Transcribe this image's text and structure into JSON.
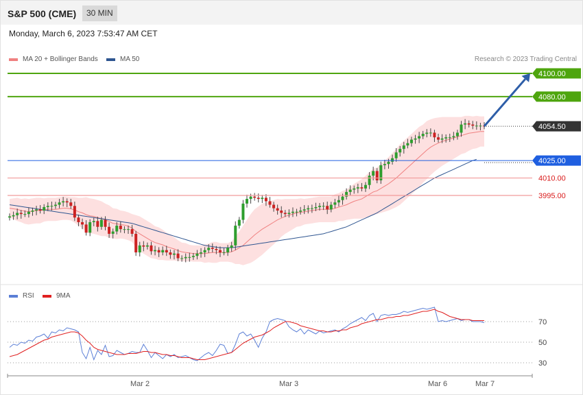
{
  "header": {
    "title": "S&P 500 (CME)",
    "timeframe": "30 MIN"
  },
  "datetime": "Monday, March 6, 2023 7:53:47 AM CET",
  "legend": {
    "ma20_label": "MA 20 + Bollinger Bands",
    "ma50_label": "MA 50",
    "ma20_color": "#f08080",
    "ma50_color": "#2e5590",
    "credit": "Research © 2023 Trading Central"
  },
  "rsi_legend": {
    "rsi_label": "RSI",
    "ma_label": "9MA",
    "rsi_color": "#5b7fd6",
    "ma_color": "#e02020"
  },
  "colors": {
    "up_candle": "#2e9e2e",
    "down_candle": "#cc2222",
    "resistance": "#4ea50e",
    "support_main": "#1f5fe0",
    "support_minor": "#f19a9a",
    "current": "#333333",
    "arrow": "#2e5ea8",
    "band_fill": "#fde0e0"
  },
  "chart_data": [
    {
      "type": "candlestick",
      "title": "S&P 500 (CME)",
      "interval": "30 MIN",
      "ylim": [
        3930,
        4103
      ],
      "x_labels": [
        "Mar 2",
        "Mar 3",
        "Mar 6",
        "Mar 7"
      ],
      "levels": [
        {
          "label": "4100.00",
          "value": 4100.0,
          "kind": "resistance"
        },
        {
          "label": "4080.00",
          "value": 4080.0,
          "kind": "resistance"
        },
        {
          "label": "4054.50",
          "value": 4054.5,
          "kind": "current"
        },
        {
          "label": "4025.00",
          "value": 4025.0,
          "kind": "support_main"
        },
        {
          "label": "4010.00",
          "value": 4010.0,
          "kind": "support_minor"
        },
        {
          "label": "3995.00",
          "value": 3995.0,
          "kind": "support_minor"
        }
      ],
      "projection": {
        "from": 4054.5,
        "to": 4100.0
      },
      "closes": [
        3977,
        3978,
        3980,
        3979,
        3979,
        3981,
        3982,
        3983,
        3982,
        3985,
        3986,
        3986,
        3987,
        3989,
        3990,
        3989,
        3986,
        3976,
        3972,
        3970,
        3963,
        3972,
        3973,
        3968,
        3974,
        3968,
        3962,
        3964,
        3969,
        3966,
        3966,
        3966,
        3962,
        3946,
        3952,
        3951,
        3952,
        3947,
        3948,
        3946,
        3948,
        3946,
        3944,
        3945,
        3941,
        3941,
        3942,
        3942,
        3943,
        3945,
        3946,
        3948,
        3950,
        3949,
        3948,
        3946,
        3946,
        3950,
        3952,
        3969,
        3974,
        3988,
        3992,
        3994,
        3993,
        3992,
        3993,
        3990,
        3987,
        3984,
        3982,
        3980,
        3979,
        3980,
        3981,
        3981,
        3982,
        3983,
        3984,
        3984,
        3985,
        3986,
        3986,
        3983,
        3987,
        3989,
        3991,
        3994,
        3998,
        4000,
        4001,
        4002,
        4001,
        4004,
        4012,
        4016,
        4008,
        4021,
        4022,
        4024,
        4027,
        4032,
        4035,
        4038,
        4040,
        4043,
        4044,
        4046,
        4048,
        4049,
        4049,
        4045,
        4043,
        4044,
        4045,
        4045,
        4046,
        4049,
        4056,
        4057,
        4056,
        4055,
        4055,
        4055,
        4054.5
      ],
      "ma20": [
        3984,
        3983.5,
        3983,
        3982,
        3981.5,
        3981,
        3981.5,
        3982,
        3982,
        3982.5,
        3983,
        3983,
        3983,
        3983.5,
        3984,
        3984,
        3983.5,
        3982.5,
        3981,
        3980,
        3978.5,
        3977.5,
        3977,
        3976,
        3975,
        3974,
        3972.5,
        3971,
        3970.5,
        3970,
        3969.5,
        3968.5,
        3967,
        3964,
        3962,
        3960,
        3958,
        3956,
        3954.5,
        3953.5,
        3952.5,
        3951,
        3950,
        3949,
        3947.5,
        3946.5,
        3946,
        3945.5,
        3945,
        3945,
        3945,
        3945,
        3945.5,
        3946,
        3946,
        3946,
        3946,
        3946,
        3946.5,
        3948,
        3950,
        3952,
        3955,
        3958,
        3961,
        3963.5,
        3966,
        3968,
        3970,
        3972,
        3974,
        3975.5,
        3977,
        3978,
        3979,
        3980,
        3980.5,
        3981,
        3981.5,
        3982,
        3982.5,
        3983,
        3983,
        3983,
        3983,
        3984,
        3985,
        3986,
        3987,
        3988.5,
        3990,
        3991,
        3992,
        3994,
        3996,
        3998,
        3999,
        4001,
        4003,
        4005,
        4007.5,
        4010,
        4013,
        4016,
        4019,
        4022,
        4025,
        4028,
        4031,
        4034,
        4036.5,
        4038.5,
        4040,
        4041.5,
        4042.5,
        4043.5,
        4044.5,
        4045.5,
        4046.5,
        4047.5,
        4048.5,
        4049,
        4049.5,
        4050,
        4050
      ],
      "ma50": [
        3987,
        3986.5,
        3986,
        3985.5,
        3985,
        3984.5,
        3984,
        3983.5,
        3983,
        3982.5,
        3982,
        3981.5,
        3981,
        3980.5,
        3980,
        3979.5,
        3979,
        3978.5,
        3978,
        3977.5,
        3977,
        3976.5,
        3976,
        3975.5,
        3975,
        3974.5,
        3974,
        3973.5,
        3973,
        3972.5,
        3972,
        3971.5,
        3971,
        3970,
        3969,
        3968,
        3967,
        3966,
        3965,
        3964,
        3963,
        3962,
        3961,
        3960,
        3959,
        3958,
        3957,
        3956,
        3955,
        3954,
        3953,
        3952,
        3951.5,
        3951,
        3950.5,
        3950,
        3950,
        3950,
        3950,
        3950.5,
        3951,
        3951.5,
        3952,
        3952.5,
        3953,
        3953.5,
        3954,
        3954.5,
        3955,
        3955.5,
        3956,
        3956.5,
        3957,
        3957.5,
        3958,
        3958.5,
        3959,
        3959.5,
        3960,
        3960.5,
        3961,
        3961.5,
        3962,
        3963,
        3964,
        3965,
        3966,
        3967,
        3968,
        3969.5,
        3971,
        3972.5,
        3974,
        3975.5,
        3977,
        3978.5,
        3980,
        3982,
        3984,
        3986,
        3988,
        3990,
        3992,
        3994,
        3996,
        3998,
        4000,
        4002,
        4004,
        4006,
        4008,
        4010,
        4011.5,
        4013,
        4014.5,
        4016,
        4017.5,
        4019,
        4020.5,
        4022,
        4023.5,
        4025,
        4026
      ],
      "band_width": [
        8,
        9,
        10,
        10,
        11,
        11,
        11,
        11,
        11,
        10,
        10,
        10,
        10,
        10,
        10,
        10,
        10,
        11,
        12,
        13,
        15,
        15,
        15,
        15,
        15,
        14,
        14,
        13,
        13,
        12,
        12,
        12,
        12,
        14,
        15,
        15,
        15,
        15,
        14,
        14,
        13,
        12,
        11,
        10,
        9,
        8,
        8,
        7,
        7,
        7,
        7,
        8,
        8,
        9,
        9,
        8,
        8,
        8,
        9,
        12,
        14,
        17,
        19,
        21,
        22,
        22,
        22,
        21,
        20,
        19,
        18,
        16,
        15,
        14,
        13,
        12,
        12,
        11,
        11,
        11,
        11,
        11,
        11,
        11,
        11,
        12,
        12,
        13,
        13,
        14,
        15,
        16,
        17,
        18,
        19,
        20,
        20,
        21,
        22,
        23,
        24,
        25,
        26,
        26,
        26,
        26,
        26,
        26,
        25,
        25,
        24,
        23,
        22,
        21,
        20,
        19,
        18,
        17,
        16,
        16,
        15,
        14,
        14,
        13,
        13
      ]
    },
    {
      "type": "line",
      "title": "RSI",
      "ylim": [
        20,
        80
      ],
      "y_ticks": [
        70,
        50,
        30
      ],
      "series": [
        {
          "name": "RSI",
          "values": [
            45,
            48,
            47,
            50,
            49,
            52,
            51,
            55,
            56,
            58,
            54,
            60,
            59,
            62,
            61,
            64,
            63,
            62,
            60,
            40,
            34,
            45,
            33,
            42,
            38,
            47,
            36,
            37,
            42,
            40,
            38,
            39,
            41,
            40,
            40,
            48,
            42,
            35,
            40,
            37,
            34,
            38,
            36,
            38,
            35,
            36,
            37,
            35,
            33,
            32,
            35,
            38,
            40,
            37,
            42,
            48,
            47,
            39,
            40,
            48,
            58,
            60,
            56,
            58,
            52,
            45,
            54,
            60,
            70,
            72,
            73,
            72,
            71,
            65,
            62,
            60,
            63,
            58,
            62,
            60,
            58,
            61,
            59,
            60,
            61,
            62,
            60,
            63,
            65,
            68,
            70,
            72,
            74,
            71,
            76,
            78,
            70,
            76,
            77,
            76,
            77,
            77,
            78,
            80,
            79,
            80,
            81,
            82,
            83,
            82,
            83,
            84,
            70,
            71,
            70,
            71,
            72,
            73,
            71,
            72,
            72,
            70,
            70,
            70,
            69
          ]
        },
        {
          "name": "9MA",
          "values": [
            36,
            37,
            38,
            40,
            42,
            44,
            46,
            48,
            50,
            52,
            53,
            55,
            56,
            57,
            58,
            59,
            60,
            60,
            59,
            56,
            52,
            49,
            45,
            43,
            42,
            41,
            40,
            39,
            38,
            38,
            38,
            39,
            39,
            39,
            40,
            41,
            41,
            40,
            40,
            39,
            38,
            38,
            37,
            37,
            36,
            35,
            35,
            35,
            34,
            33,
            33,
            33,
            34,
            35,
            36,
            37,
            38,
            39,
            40,
            43,
            46,
            49,
            51,
            53,
            55,
            56,
            57,
            59,
            61,
            64,
            66,
            68,
            70,
            70,
            69,
            68,
            66,
            65,
            64,
            63,
            62,
            61,
            61,
            60,
            60,
            61,
            61,
            62,
            62,
            64,
            65,
            66,
            68,
            69,
            70,
            71,
            72,
            72,
            73,
            74,
            74,
            75,
            75,
            76,
            76,
            77,
            78,
            79,
            80,
            80,
            81,
            82,
            80,
            79,
            77,
            75,
            74,
            73,
            72,
            72,
            72,
            71,
            71,
            71,
            71
          ]
        }
      ]
    }
  ]
}
